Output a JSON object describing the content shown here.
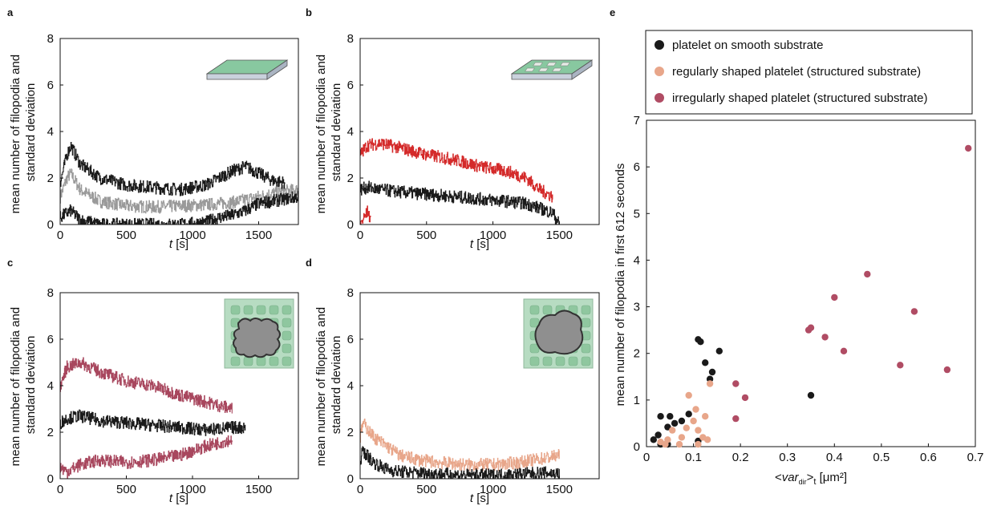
{
  "panels": {
    "a": {
      "letter": "a",
      "ylabel_line1": "mean number of filopodia and",
      "ylabel_line2": "standard deviation",
      "xlabel_italic": "t",
      "xlabel_unit": " [s]"
    },
    "b": {
      "letter": "b",
      "ylabel_line1": "mean number of filopodia and",
      "ylabel_line2": "standard deviation",
      "xlabel_italic": "t",
      "xlabel_unit": " [s]"
    },
    "c": {
      "letter": "c",
      "ylabel_line1": "mean number of filopodia and",
      "ylabel_line2": "standard deviation",
      "xlabel_italic": "t",
      "xlabel_unit": " [s]"
    },
    "d": {
      "letter": "d",
      "ylabel_line1": "mean number of filopodia and",
      "ylabel_line2": "standard deviation",
      "xlabel_italic": "t",
      "xlabel_unit": " [s]"
    },
    "e": {
      "letter": "e",
      "ylabel": "mean number of filopodia in first 612 seconds",
      "xlabel_prefix": "<",
      "xlabel_var": "var",
      "xlabel_sub1": "dir",
      "xlabel_mid": ">",
      "xlabel_sub2": "t",
      "xlabel_unit": " [μm²]"
    }
  },
  "ticks": {
    "time_x": [
      "0",
      "500",
      "1000",
      "1500"
    ],
    "time_y": [
      "0",
      "2",
      "4",
      "6",
      "8"
    ],
    "scatter_x": [
      "0",
      "0.1",
      "0.2",
      "0.3",
      "0.4",
      "0.5",
      "0.6",
      "0.7"
    ],
    "scatter_y": [
      "0",
      "1",
      "2",
      "3",
      "4",
      "5",
      "6",
      "7"
    ]
  },
  "legend": [
    {
      "label": "platelet on smooth substrate",
      "color": "#1a1a1a"
    },
    {
      "label": "regularly shaped platelet (structured substrate)",
      "color": "#e8a68a"
    },
    {
      "label": "irregularly shaped platelet (structured substrate)",
      "color": "#b04c64"
    }
  ],
  "chart_data": [
    {
      "panel": "a",
      "type": "line",
      "xlim": [
        0,
        1800
      ],
      "ylim": [
        0,
        8
      ],
      "series": [
        {
          "role": "mean",
          "color": "#9a9a9a",
          "x": [
            0,
            50,
            80,
            150,
            300,
            500,
            700,
            900,
            1100,
            1300,
            1500,
            1650,
            1800
          ],
          "y": [
            1.2,
            2.0,
            2.2,
            1.5,
            1.0,
            0.8,
            0.75,
            0.8,
            0.85,
            0.95,
            1.2,
            1.4,
            1.5
          ]
        },
        {
          "role": "upper",
          "color": "#1a1a1a",
          "x": [
            0,
            50,
            80,
            150,
            300,
            500,
            700,
            900,
            1100,
            1300,
            1400,
            1500,
            1600,
            1700
          ],
          "y": [
            1.8,
            3.0,
            3.4,
            2.6,
            2.0,
            1.7,
            1.6,
            1.5,
            1.7,
            2.3,
            2.5,
            2.2,
            1.9,
            1.8
          ]
        },
        {
          "role": "lower",
          "color": "#1a1a1a",
          "x": [
            0,
            50,
            80,
            150,
            300,
            600,
            900,
            1100,
            1200,
            1300,
            1400,
            1500,
            1600,
            1700,
            1800
          ],
          "y": [
            0.3,
            0.5,
            0.6,
            0.2,
            0.0,
            0.0,
            0.0,
            0.1,
            0.3,
            0.4,
            0.6,
            0.9,
            1.0,
            1.1,
            1.2
          ]
        }
      ]
    },
    {
      "panel": "b",
      "type": "line",
      "xlim": [
        0,
        1800
      ],
      "ylim": [
        0,
        8
      ],
      "series": [
        {
          "role": "upper",
          "color": "#d42a2a",
          "x": [
            0,
            50,
            150,
            300,
            500,
            700,
            900,
            1100,
            1250,
            1350,
            1450
          ],
          "y": [
            3.0,
            3.4,
            3.5,
            3.3,
            3.0,
            2.8,
            2.5,
            2.3,
            2.0,
            1.5,
            1.2
          ]
        },
        {
          "role": "mean",
          "color": "#1a1a1a",
          "x": [
            0,
            50,
            150,
            300,
            500,
            700,
            900,
            1100,
            1250,
            1350,
            1450,
            1500
          ],
          "y": [
            1.5,
            1.6,
            1.5,
            1.4,
            1.3,
            1.2,
            1.1,
            1.0,
            0.9,
            0.7,
            0.5,
            0.0
          ]
        },
        {
          "role": "lower",
          "color": "#d42a2a",
          "x": [
            0,
            30,
            60,
            80
          ],
          "y": [
            0.0,
            0.3,
            0.6,
            0.0
          ]
        }
      ]
    },
    {
      "panel": "c",
      "type": "line",
      "xlim": [
        0,
        1800
      ],
      "ylim": [
        0,
        8
      ],
      "series": [
        {
          "role": "upper",
          "color": "#a8475e",
          "x": [
            0,
            50,
            150,
            300,
            500,
            700,
            900,
            1100,
            1300
          ],
          "y": [
            4.0,
            4.8,
            5.0,
            4.6,
            4.2,
            4.0,
            3.6,
            3.3,
            3.0
          ]
        },
        {
          "role": "mean",
          "color": "#1a1a1a",
          "x": [
            0,
            50,
            150,
            300,
            500,
            700,
            900,
            1100,
            1300,
            1400
          ],
          "y": [
            2.4,
            2.6,
            2.7,
            2.5,
            2.4,
            2.3,
            2.2,
            2.1,
            2.2,
            2.2
          ]
        },
        {
          "role": "lower",
          "color": "#a8475e",
          "x": [
            0,
            50,
            150,
            300,
            500,
            700,
            900,
            1100,
            1300
          ],
          "y": [
            0.5,
            0.3,
            0.6,
            0.8,
            0.7,
            0.8,
            1.0,
            1.4,
            1.7
          ]
        }
      ]
    },
    {
      "panel": "d",
      "type": "line",
      "xlim": [
        0,
        1800
      ],
      "ylim": [
        0,
        8
      ],
      "series": [
        {
          "role": "upper",
          "color": "#e8a68a",
          "x": [
            0,
            20,
            100,
            200,
            300,
            450,
            600,
            800,
            1000,
            1200,
            1400,
            1500
          ],
          "y": [
            1.8,
            2.4,
            1.8,
            1.4,
            1.0,
            0.8,
            0.7,
            0.6,
            0.6,
            0.7,
            0.9,
            1.0
          ]
        },
        {
          "role": "mean",
          "color": "#1a1a1a",
          "x": [
            0,
            20,
            100,
            200,
            300,
            450,
            600,
            800,
            1000,
            1200,
            1400,
            1500
          ],
          "y": [
            0.8,
            1.2,
            0.7,
            0.4,
            0.3,
            0.25,
            0.2,
            0.15,
            0.15,
            0.2,
            0.25,
            0.2
          ]
        }
      ]
    },
    {
      "panel": "e",
      "type": "scatter",
      "xlim": [
        0,
        0.7
      ],
      "ylim": [
        0,
        7
      ],
      "series": [
        {
          "name": "platelet on smooth substrate",
          "color": "#1a1a1a",
          "points": [
            [
              0.015,
              0.15
            ],
            [
              0.025,
              0.25
            ],
            [
              0.03,
              0.05
            ],
            [
              0.03,
              0.65
            ],
            [
              0.045,
              0.05
            ],
            [
              0.045,
              0.42
            ],
            [
              0.05,
              0.65
            ],
            [
              0.06,
              0.5
            ],
            [
              0.075,
              0.55
            ],
            [
              0.09,
              0.7
            ],
            [
              0.11,
              0.12
            ],
            [
              0.11,
              2.3
            ],
            [
              0.115,
              2.25
            ],
            [
              0.125,
              1.8
            ],
            [
              0.135,
              1.45
            ],
            [
              0.14,
              1.6
            ],
            [
              0.155,
              2.05
            ],
            [
              0.35,
              1.1
            ]
          ]
        },
        {
          "name": "regularly shaped platelet (structured substrate)",
          "color": "#e8a68a",
          "points": [
            [
              0.03,
              0.1
            ],
            [
              0.04,
              0.05
            ],
            [
              0.045,
              0.15
            ],
            [
              0.055,
              0.35
            ],
            [
              0.07,
              0.05
            ],
            [
              0.075,
              0.2
            ],
            [
              0.085,
              0.4
            ],
            [
              0.09,
              1.1
            ],
            [
              0.1,
              0.55
            ],
            [
              0.105,
              0.8
            ],
            [
              0.11,
              0.05
            ],
            [
              0.11,
              0.35
            ],
            [
              0.12,
              0.2
            ],
            [
              0.125,
              0.65
            ],
            [
              0.13,
              0.15
            ],
            [
              0.135,
              1.35
            ]
          ]
        },
        {
          "name": "irregularly shaped platelet (structured substrate)",
          "color": "#b04c64",
          "points": [
            [
              0.19,
              1.35
            ],
            [
              0.19,
              0.6
            ],
            [
              0.21,
              1.05
            ],
            [
              0.345,
              2.5
            ],
            [
              0.35,
              2.55
            ],
            [
              0.38,
              2.35
            ],
            [
              0.4,
              3.2
            ],
            [
              0.42,
              2.05
            ],
            [
              0.47,
              3.7
            ],
            [
              0.54,
              1.75
            ],
            [
              0.57,
              2.9
            ],
            [
              0.64,
              1.65
            ],
            [
              0.685,
              6.4
            ]
          ]
        }
      ]
    }
  ]
}
